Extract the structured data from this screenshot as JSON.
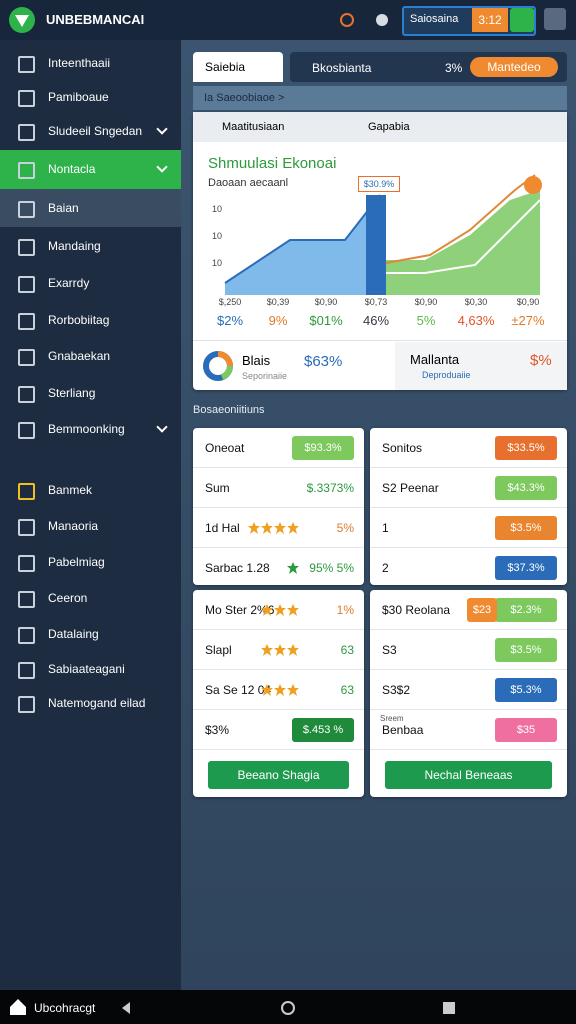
{
  "top_bar": {
    "app_title": "UNBEBMANCAI",
    "status_label": "Saiosaina",
    "time": "3:12"
  },
  "sidebar": {
    "items": [
      {
        "label": "Inteenthaaii"
      },
      {
        "label": "Pamiboaue"
      },
      {
        "label": "Sludeeil Sngedan",
        "chevron": true
      },
      {
        "label": "Nontacla",
        "chevron": true,
        "active": true
      },
      {
        "label": "Baian",
        "selected": true
      },
      {
        "label": "Mandaing"
      },
      {
        "label": "Exarrdy"
      },
      {
        "label": "Rorbobiitag"
      },
      {
        "label": "Gnabaekan"
      },
      {
        "label": "Sterliang"
      },
      {
        "label": "Bemmoonking",
        "chevron": true
      },
      {
        "label": "Banmek"
      },
      {
        "label": "Manaoria"
      },
      {
        "label": "Pabelmiag"
      },
      {
        "label": "Ceeron"
      },
      {
        "label": "Datalaing"
      },
      {
        "label": "Sabiaateagani"
      },
      {
        "label": "Natemogand eilad"
      }
    ]
  },
  "tabs": {
    "active": "Saiebia",
    "second": "Bkosbianta",
    "badge": "3%",
    "button": "Mantedeo"
  },
  "breadcrumb": "Ia Saeoobiaoe >",
  "chart_card": {
    "search": "Maatitusiaan",
    "filter": "Gapabia",
    "title": "Shmuulasi Ekonoai",
    "subtitle": "Daoaan aecaanl",
    "callout": "$30.9%",
    "y_labels": [
      "10",
      "10",
      "10"
    ],
    "x_labels": [
      "$,250",
      "$0,39",
      "$0,90",
      "$0,73",
      "$0,90",
      "$0,30",
      "$0,90"
    ],
    "value_labels": [
      {
        "text": "$2%",
        "color": "#2b6cb8"
      },
      {
        "text": "9%",
        "color": "#e07a2a"
      },
      {
        "text": "$01%",
        "color": "#2d9a3c"
      },
      {
        "text": "46%",
        "color": "#333a44"
      },
      {
        "text": "5%",
        "color": "#5fb84a"
      },
      {
        "text": "4,63%",
        "color": "#e0562a"
      },
      {
        "text": "±27%",
        "color": "#e07a2a"
      }
    ],
    "footer": {
      "left_title": "Blais",
      "left_sub": "Seporinaiie",
      "left_value": "$63%",
      "right_title": "Mallanta",
      "right_sub": "Deproduaiie",
      "right_value": "$%"
    }
  },
  "section_title": "Bosaeoniitiuns",
  "cards": [
    {
      "rows": [
        {
          "label": "Oneoat",
          "value": "$93.3%",
          "color": "#7dc95e"
        },
        {
          "label": "Sum",
          "value": "$.3373%",
          "text_color": "#2d9a3c"
        },
        {
          "label": "1d Hal",
          "stars": 4,
          "value": "5%",
          "text_color": "#e07a2a"
        },
        {
          "label": "Sarbac 1.28",
          "stars": 1,
          "value": "95% 5%",
          "text_color": "#2d9a3c"
        }
      ]
    },
    {
      "rows": [
        {
          "label": "Sonitos",
          "value": "$33.5%",
          "color": "#e8702e"
        },
        {
          "label": "S2 Peenar",
          "value": "$43.3%",
          "color": "#7dc95e"
        },
        {
          "label": "1",
          "value": "$3.5%",
          "color": "#e8852e"
        },
        {
          "label": "2",
          "value": "$37.3%",
          "color": "#2b6cb8"
        }
      ]
    },
    {
      "rows": [
        {
          "label": "Mo Ster 2%6",
          "stars": 3,
          "value": "1%",
          "text_color": "#e07a2a"
        },
        {
          "label": "Slapl",
          "stars": 3,
          "value": "63",
          "text_color": "#2d9a3c"
        },
        {
          "label": "Sa Se 12 04",
          "stars": 3,
          "value": "63",
          "text_color": "#2d9a3c"
        },
        {
          "label": "$3%",
          "value": "$.453 %",
          "color": "#1e8a3a"
        }
      ],
      "button": "Beeano Shagia"
    },
    {
      "rows": [
        {
          "label": "$30 Reolana",
          "badge": "$23",
          "badge_color": "#f08a30",
          "value": "$2.3%",
          "color": "#7dc95e"
        },
        {
          "label": "S3",
          "value": "$3.5%",
          "color": "#7dc95e"
        },
        {
          "label": "S3$2",
          "value": "$5.3%",
          "color": "#2b6cb8"
        },
        {
          "label": "Benbaa",
          "note": "Sreem",
          "value": "$35",
          "color": "#ef6fa0"
        }
      ],
      "button": "Nechal Beneaas"
    }
  ],
  "bottom_bar": {
    "label": "Ubcohracgt"
  }
}
